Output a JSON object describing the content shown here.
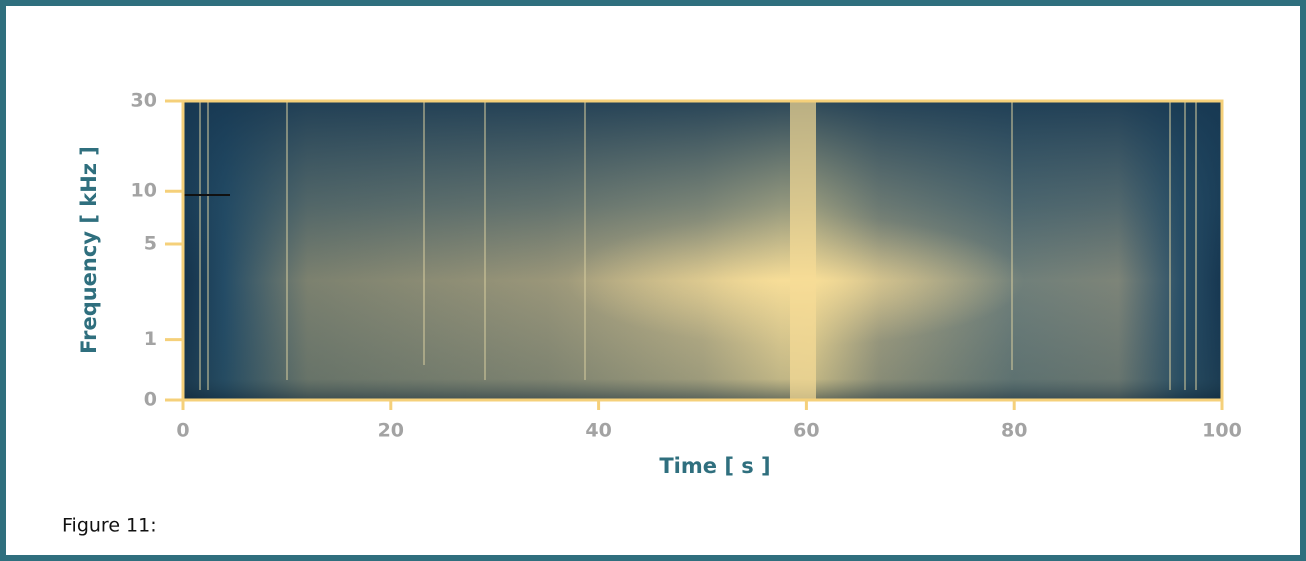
{
  "figure": {
    "caption": "Figure 11:"
  },
  "chart_data": {
    "type": "spectrogram",
    "x_label": "Time [ s ]",
    "y_label": "Frequency [ kHz ]",
    "xlim": [
      0,
      100
    ],
    "xticks": [
      0,
      20,
      40,
      60,
      80,
      100
    ],
    "ylim": [
      0,
      30
    ],
    "yticks": [
      0,
      1,
      5,
      10,
      30
    ],
    "yscale": "log1p",
    "axis_color": "#f5d07a"
  }
}
